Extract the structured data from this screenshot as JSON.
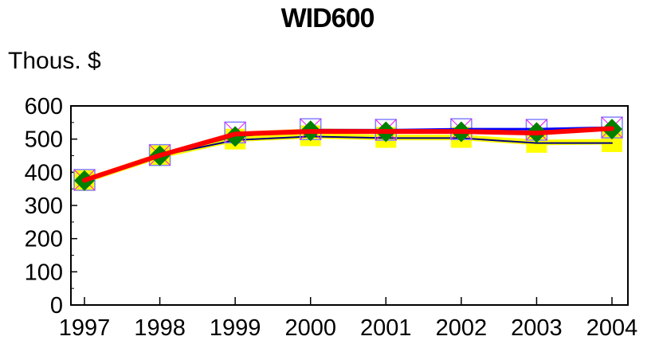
{
  "chart_data": {
    "type": "line",
    "title": "WID600",
    "ylabel": "Thous. $",
    "xlabel": "",
    "categories": [
      "1997",
      "1998",
      "1999",
      "2000",
      "2001",
      "2002",
      "2003",
      "2004"
    ],
    "ylim": [
      0,
      600
    ],
    "yticks": [
      0,
      100,
      200,
      300,
      400,
      500,
      600
    ],
    "grid": false,
    "legend": "none",
    "series": [
      {
        "color": "#FFFF00",
        "marker": "square",
        "values": [
          375,
          450,
          500,
          510,
          505,
          505,
          490,
          492
        ]
      },
      {
        "color": "#000080",
        "marker": "none",
        "values": [
          375,
          450,
          497,
          508,
          503,
          503,
          488,
          488
        ]
      },
      {
        "color": "#FFCC66",
        "marker": "square-x",
        "values": [
          377,
          452,
          520,
          530,
          528,
          530,
          528,
          535
        ]
      },
      {
        "color": "#0000FF",
        "marker": "none",
        "values": [
          376,
          451,
          515,
          527,
          527,
          530,
          530,
          535
        ]
      },
      {
        "color": "#008000",
        "marker": "diamond",
        "values": [
          375,
          450,
          508,
          525,
          522,
          522,
          520,
          530
        ]
      },
      {
        "color": "#FF0000",
        "marker": "none",
        "values": [
          376,
          451,
          515,
          523,
          523,
          523,
          518,
          532
        ]
      }
    ]
  }
}
